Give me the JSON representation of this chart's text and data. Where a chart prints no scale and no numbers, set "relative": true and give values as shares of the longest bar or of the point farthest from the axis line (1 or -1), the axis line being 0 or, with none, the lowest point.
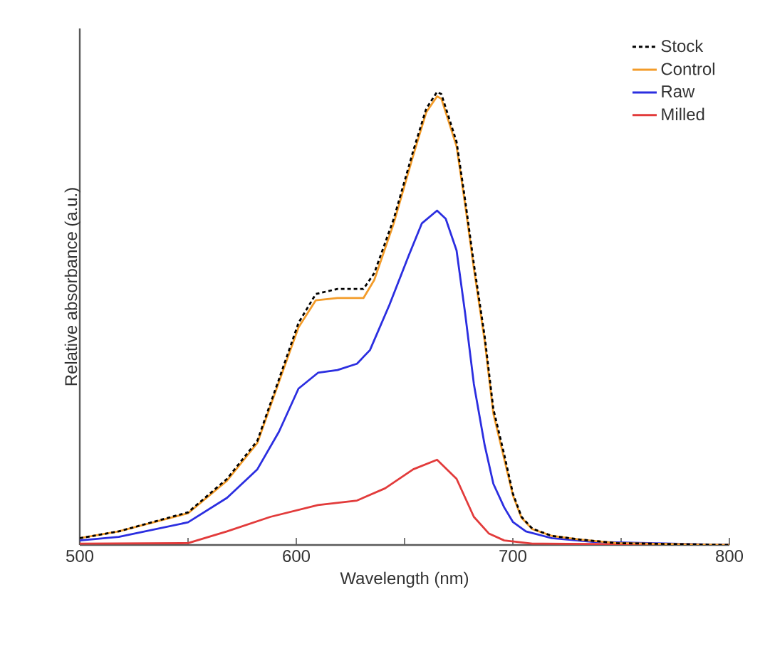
{
  "chart_data": {
    "type": "line",
    "xlabel": "Wavelength (nm)",
    "ylabel": "Relative absorbance (a.u.)",
    "relative": true,
    "xlim": [
      500,
      800
    ],
    "xticks": [
      500,
      {
        "value": 550,
        "label": null
      },
      600,
      {
        "value": 650,
        "label": null
      },
      700,
      {
        "value": 750,
        "label": null
      },
      800
    ],
    "legend": "top right",
    "grid": false,
    "marker": "none",
    "series": [
      {
        "name": "Stock",
        "color": "#000000",
        "line_style": "dashed",
        "x": [
          500,
          518,
          550,
          568,
          582,
          592,
          601,
          609,
          619,
          631,
          636,
          645,
          654,
          660,
          665,
          667,
          670,
          674,
          678,
          682,
          687,
          691,
          696,
          700,
          704,
          709,
          718,
          731,
          748,
          800
        ],
        "values": [
          0.015,
          0.03,
          0.072,
          0.146,
          0.23,
          0.366,
          0.49,
          0.554,
          0.565,
          0.565,
          0.6,
          0.72,
          0.87,
          0.963,
          1,
          0.995,
          0.95,
          0.89,
          0.76,
          0.62,
          0.46,
          0.3,
          0.2,
          0.114,
          0.062,
          0.036,
          0.02,
          0.012,
          0.004,
          0
        ]
      },
      {
        "name": "Control",
        "color": "#f39c2a",
        "line_style": "solid",
        "x": [
          500,
          518,
          550,
          568,
          582,
          592,
          601,
          609,
          619,
          631,
          636,
          645,
          654,
          660,
          665,
          667,
          670,
          674,
          678,
          682,
          687,
          691,
          696,
          700,
          704,
          709,
          718,
          731,
          748,
          800
        ],
        "values": [
          0.015,
          0.03,
          0.07,
          0.142,
          0.225,
          0.36,
          0.48,
          0.54,
          0.545,
          0.545,
          0.585,
          0.71,
          0.86,
          0.955,
          0.99,
          0.985,
          0.94,
          0.88,
          0.75,
          0.61,
          0.45,
          0.29,
          0.19,
          0.11,
          0.06,
          0.035,
          0.02,
          0.012,
          0.004,
          0
        ]
      },
      {
        "name": "Raw",
        "color": "#2b2ee0",
        "line_style": "solid",
        "x": [
          500,
          518,
          550,
          568,
          582,
          592,
          601,
          610,
          619,
          628,
          634,
          643,
          652,
          658,
          665,
          669,
          674,
          678,
          682,
          687,
          691,
          696,
          700,
          706,
          718,
          737,
          800
        ],
        "values": [
          0.01,
          0.018,
          0.05,
          0.104,
          0.167,
          0.25,
          0.345,
          0.38,
          0.386,
          0.4,
          0.43,
          0.53,
          0.64,
          0.71,
          0.738,
          0.72,
          0.65,
          0.51,
          0.355,
          0.22,
          0.135,
          0.083,
          0.051,
          0.03,
          0.015,
          0.007,
          0
        ]
      },
      {
        "name": "Milled",
        "color": "#e23b3b",
        "line_style": "solid",
        "x": [
          500,
          550,
          568,
          588,
          610,
          628,
          641,
          654,
          665,
          674,
          678,
          682,
          689,
          696,
          709,
          800
        ],
        "values": [
          0.003,
          0.004,
          0.03,
          0.062,
          0.088,
          0.098,
          0.125,
          0.167,
          0.188,
          0.146,
          0.104,
          0.062,
          0.025,
          0.01,
          0.003,
          0
        ]
      }
    ]
  }
}
